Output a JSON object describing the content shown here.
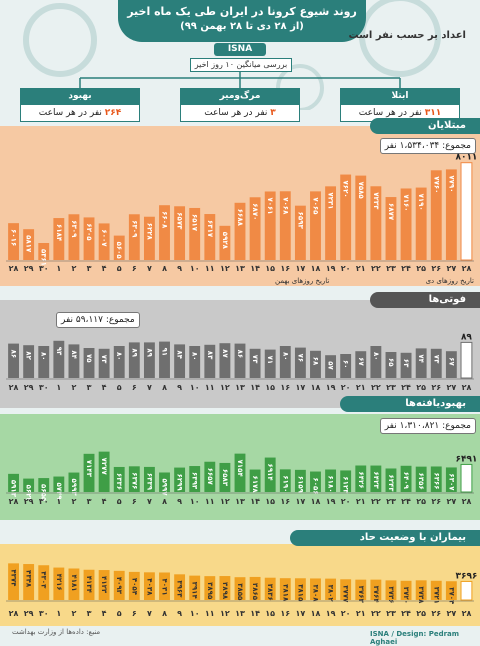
{
  "header": {
    "title": "روند شیوع کرونا در ایران طی یک ماه اخیر",
    "subtitle": "(از ۲۸ دی تا ۲۸ بهمن ۹۹)",
    "brand": "ISNA",
    "units_note": "اعداد بر حسب نفر است",
    "avg_title": "بررسی میانگین ۱۰ روز اخیر"
  },
  "summary": {
    "recovered": {
      "label": "بهبود",
      "value": "۲۶۴",
      "unit": "نفر در هر ساعت"
    },
    "deaths": {
      "label": "مرگ‌ومیر",
      "value": "۳",
      "unit": "نفر در هر ساعت"
    },
    "infected": {
      "label": "ابتلا",
      "value": "۳۱۱",
      "unit": "نفر در هر ساعت"
    }
  },
  "panels": {
    "infected": {
      "title": "مبتلایان",
      "total": "مجموع: ۱،۵۳۴،۰۳۴ نفر",
      "color": "#f08a45",
      "bg": "#f6c9a3"
    },
    "deaths": {
      "title": "فوتی‌ها",
      "total": "مجموع: ۵۹،۱۱۷ نفر",
      "color": "#6f6f6f",
      "bg": "#c9c9c9"
    },
    "recovered": {
      "title": "بهبودیافته‌ها",
      "total": "مجموع: ۱،۳۱۰،۸۲۱ نفر",
      "color": "#3f9e46",
      "bg": "#a6d8a4"
    },
    "severe": {
      "title": "بیماران با وضعیت حاد",
      "color": "#f0a020",
      "bg": "#f8d98a"
    }
  },
  "axis": {
    "xlabel_right": "تاریخ روزهای دی",
    "xlabel_left": "تاریخ روزهای بهمن"
  },
  "footer": {
    "source": "منبع: داده‌ها از وزارت بهداشت",
    "credit": "ISNA / Design: Pedram Aghaei",
    "watermark": "ISNA"
  },
  "chart_data": [
    {
      "type": "bar",
      "title": "مبتلایان",
      "categories": [
        "۲۸",
        "۲۹",
        "۳۰",
        "۱",
        "۲",
        "۳",
        "۴",
        "۵",
        "۶",
        "۷",
        "۸",
        "۹",
        "۱۰",
        "۱۱",
        "۱۲",
        "۱۳",
        "۱۴",
        "۱۵",
        "۱۶",
        "۱۷",
        "۱۸",
        "۱۹",
        "۲۰",
        "۲۱",
        "۲۲",
        "۲۳",
        "۲۴",
        "۲۵",
        "۲۶",
        "۲۷",
        "۲۸"
      ],
      "values": [
        6016,
        5817,
        5361,
        6184,
        6309,
        6205,
        6007,
        5605,
        6309,
        6228,
        6608,
        6573,
        6517,
        6317,
        5928,
        6688,
        6870,
        7061,
        7068,
        6593,
        7065,
        7231,
        7620,
        7585,
        7233,
        6877,
        7160,
        7190,
        7760,
        7790,
        8011
      ],
      "labels": [
        "۶۰۱۶",
        "۵۸۱۷",
        "۵۳۶۱",
        "۶۱۸۴",
        "۶۳۰۹",
        "۶۲۰۵",
        "۶۰۰۷",
        "۵۶۰۵",
        "۶۳۰۹",
        "۶۲۲۸",
        "۶۶۰۸",
        "۶۵۷۳",
        "۶۵۱۷",
        "۶۳۱۷",
        "۵۹۲۸",
        "۶۶۸۸",
        "۶۸۷۰",
        "۷۰۶۱",
        "۷۰۶۸",
        "۶۵۹۳",
        "۷۰۶۵",
        "۷۲۳۱",
        "۷۶۲۰",
        "۷۵۸۵",
        "۷۲۳۳",
        "۶۸۷۷",
        "۷۱۶۰",
        "۷۱۹۰",
        "۷۷۶۰",
        "۷۷۹۰",
        "۸۰۱۱"
      ],
      "ylim": [
        4800,
        8100
      ]
    },
    {
      "type": "bar",
      "title": "فوتی‌ها",
      "categories": [
        "۲۸",
        "۲۹",
        "۳۰",
        "۱",
        "۲",
        "۳",
        "۴",
        "۵",
        "۶",
        "۷",
        "۸",
        "۹",
        "۱۰",
        "۱۱",
        "۱۲",
        "۱۳",
        "۱۴",
        "۱۵",
        "۱۶",
        "۱۷",
        "۱۸",
        "۱۹",
        "۲۰",
        "۲۱",
        "۲۲",
        "۲۳",
        "۲۴",
        "۲۵",
        "۲۶",
        "۲۷",
        "۲۸"
      ],
      "values": [
        86,
        82,
        80,
        93,
        84,
        75,
        73,
        80,
        89,
        89,
        91,
        84,
        80,
        83,
        87,
        86,
        73,
        71,
        80,
        76,
        68,
        57,
        60,
        67,
        80,
        65,
        63,
        74,
        73,
        67,
        89
      ],
      "labels": [
        "۸۶",
        "۸۲",
        "۸۰",
        "۹۳",
        "۸۴",
        "۷۵",
        "۷۳",
        "۸۰",
        "۸۹",
        "۸۹",
        "۹۱",
        "۸۴",
        "۸۰",
        "۸۳",
        "۸۷",
        "۸۶",
        "۷۳",
        "۷۱",
        "۸۰",
        "۷۶",
        "۶۸",
        "۵۷",
        "۶۰",
        "۶۷",
        "۸۰",
        "۶۵",
        "۶۳",
        "۷۴",
        "۷۳",
        "۶۷",
        "۸۹"
      ],
      "ylim": [
        0,
        100
      ]
    },
    {
      "type": "bar",
      "title": "بهبودیافته‌ها",
      "categories": [
        "۲۸",
        "۲۹",
        "۳۰",
        "۱",
        "۲",
        "۳",
        "۴",
        "۵",
        "۶",
        "۷",
        "۸",
        "۹",
        "۱۰",
        "۱۱",
        "۱۲",
        "۱۳",
        "۱۴",
        "۱۵",
        "۱۶",
        "۱۷",
        "۱۸",
        "۱۹",
        "۲۰",
        "۲۱",
        "۲۲",
        "۲۳",
        "۲۴",
        "۲۵",
        "۲۶",
        "۲۷",
        "۲۸"
      ],
      "values": [
        5913,
        5623,
        5655,
        5749,
        5993,
        7143,
        7277,
        6336,
        6376,
        6339,
        5997,
        6299,
        6393,
        6657,
        6583,
        7154,
        6178,
        6914,
        6190,
        6159,
        6056,
        6180,
        6123,
        6426,
        6423,
        6243,
        6409,
        6356,
        6366,
        6307,
        6491
      ],
      "labels": [
        "۵۹۱۳",
        "۵۶۲۳",
        "۵۶۵۵",
        "۵۷۴۹",
        "۵۹۹۳",
        "۷۱۴۳",
        "۷۲۷۷",
        "۶۳۳۶",
        "۶۳۷۶",
        "۶۳۳۹",
        "۵۹۹۷",
        "۶۲۹۹",
        "۶۳۹۳",
        "۶۶۵۷",
        "۶۵۸۳",
        "۷۱۵۴",
        "۶۱۷۸",
        "۶۹۱۴",
        "۶۱۹۰",
        "۶۱۵۹",
        "۶۰۵۶",
        "۶۱۸۰",
        "۶۱۲۳",
        "۶۴۲۶",
        "۶۴۲۳",
        "۶۲۴۳",
        "۶۴۰۹",
        "۶۳۵۶",
        "۶۳۶۶",
        "۶۳۰۷",
        "۶۴۹۱"
      ],
      "ylim": [
        4800,
        7500
      ]
    },
    {
      "type": "bar",
      "title": "بیماران با وضعیت حاد",
      "categories": [
        "۲۸",
        "۲۹",
        "۳۰",
        "۱",
        "۲",
        "۳",
        "۴",
        "۵",
        "۶",
        "۷",
        "۸",
        "۹",
        "۱۰",
        "۱۱",
        "۱۲",
        "۱۳",
        "۱۴",
        "۱۵",
        "۱۶",
        "۱۷",
        "۱۸",
        "۱۹",
        "۲۰",
        "۲۱",
        "۲۲",
        "۲۳",
        "۲۴",
        "۲۵",
        "۲۶",
        "۲۷",
        "۲۸"
      ],
      "values": [
        4374,
        4348,
        4303,
        4216,
        4181,
        4134,
        4123,
        4093,
        4054,
        4038,
        4031,
        3963,
        3914,
        3895,
        3898,
        3855,
        3865,
        3836,
        3818,
        3815,
        3808,
        3802,
        3777,
        3763,
        3764,
        3736,
        3720,
        3738,
        3721,
        3704,
        3696
      ],
      "labels": [
        "۴۳۷۴",
        "۴۳۴۸",
        "۴۳۰۳",
        "۴۲۱۶",
        "۴۱۸۱",
        "۴۱۳۴",
        "۴۱۲۳",
        "۴۰۹۳",
        "۴۰۵۴",
        "۴۰۳۸",
        "۴۰۳۱",
        "۳۹۶۳",
        "۳۹۱۴",
        "۳۸۹۵",
        "۳۸۹۸",
        "۳۸۵۵",
        "۳۸۶۵",
        "۳۸۳۶",
        "۳۸۱۸",
        "۳۸۱۵",
        "۳۸۰۸",
        "۳۸۰۲",
        "۳۷۷۷",
        "۳۷۶۳",
        "۳۷۶۴",
        "۳۷۳۶",
        "۳۷۲۰",
        "۳۷۳۸",
        "۳۷۲۱",
        "۳۷۰۴",
        "۳۶۹۶"
      ],
      "ylim": [
        3000,
        4500
      ]
    }
  ]
}
